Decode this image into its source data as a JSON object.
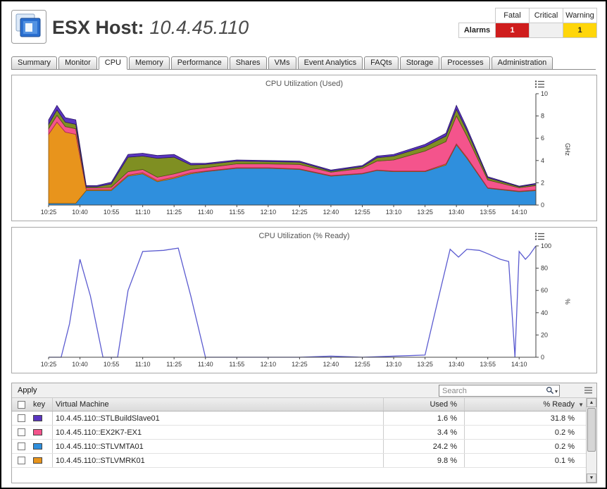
{
  "header": {
    "title_prefix": "ESX Host:",
    "title_value": "10.4.45.110"
  },
  "alarms": {
    "label": "Alarms",
    "columns": [
      "Fatal",
      "Critical",
      "Warning"
    ],
    "fatal_count": "1",
    "critical_count": "",
    "warning_count": "1",
    "fatal_color": "#cf1d1d",
    "critical_color": "#f0f0f0",
    "warning_color": "#ffd60a"
  },
  "tabs": {
    "items": [
      "Summary",
      "Monitor",
      "CPU",
      "Memory",
      "Performance",
      "Shares",
      "VMs",
      "Event Analytics",
      "FAQts",
      "Storage",
      "Processes",
      "Administration"
    ],
    "active": "CPU"
  },
  "chart_data": [
    {
      "type": "stacked-area",
      "title": "CPU Utilization (Used)",
      "ylabel": "GHz",
      "ylim": [
        0,
        10
      ],
      "yticks": [
        0,
        2,
        4,
        6,
        8,
        10
      ],
      "xtick_labels": [
        "10:25",
        "10:40",
        "10:55",
        "11:10",
        "11:25",
        "11:40",
        "11:55",
        "12:10",
        "12:25",
        "12:40",
        "12:55",
        "13:10",
        "13:25",
        "13:40",
        "13:55",
        "14:10"
      ],
      "xtick_step": 15,
      "xmax": 233,
      "x": [
        0,
        4,
        8,
        13,
        18,
        23,
        30,
        38,
        45,
        52,
        60,
        68,
        75,
        90,
        105,
        120,
        135,
        150,
        157,
        165,
        180,
        190,
        195,
        200,
        210,
        225,
        233
      ],
      "series": [
        {
          "name": "blue (STLVMTA01)",
          "color": "#2f8fdd",
          "stroke": "#1a5f9e",
          "values": [
            0.15,
            0.15,
            0.15,
            0.15,
            1.3,
            1.3,
            1.3,
            2.6,
            2.8,
            2.1,
            2.4,
            2.8,
            3.0,
            3.3,
            3.3,
            3.2,
            2.6,
            2.8,
            3.1,
            3.0,
            3.0,
            3.6,
            5.4,
            4.2,
            1.5,
            1.2,
            1.3
          ]
        },
        {
          "name": "orange (STLVMRK01)",
          "color": "#e8941c",
          "stroke": "#8a5408",
          "values": [
            6.2,
            7.3,
            6.4,
            6.2,
            0.1,
            0.1,
            0.1,
            0.1,
            0.1,
            0.1,
            0.1,
            0.1,
            0.05,
            0.05,
            0.05,
            0.05,
            0.05,
            0.05,
            0.05,
            0.05,
            0.05,
            0.1,
            0.1,
            0.1,
            0.05,
            0.05,
            0.05
          ]
        },
        {
          "name": "pink (EX2K7-EX1)",
          "color": "#f4548c",
          "stroke": "#a82355",
          "values": [
            0.5,
            0.6,
            0.5,
            0.5,
            0.15,
            0.15,
            0.2,
            0.3,
            0.3,
            0.3,
            0.3,
            0.3,
            0.3,
            0.35,
            0.35,
            0.4,
            0.3,
            0.45,
            0.8,
            1.0,
            1.8,
            2.0,
            2.5,
            1.9,
            0.7,
            0.3,
            0.4
          ]
        },
        {
          "name": "olive",
          "color": "#7f8f22",
          "stroke": "#4a5510",
          "values": [
            0.4,
            0.5,
            0.4,
            0.4,
            0.1,
            0.1,
            0.3,
            1.3,
            1.2,
            1.7,
            1.5,
            0.4,
            0.3,
            0.25,
            0.2,
            0.2,
            0.1,
            0.15,
            0.3,
            0.35,
            0.4,
            0.5,
            0.6,
            0.5,
            0.2,
            0.1,
            0.1
          ]
        },
        {
          "name": "purple (STLBuildSlave01)",
          "color": "#5a35c0",
          "stroke": "#2a1566",
          "values": [
            0.4,
            0.4,
            0.4,
            0.4,
            0.1,
            0.1,
            0.15,
            0.25,
            0.25,
            0.25,
            0.25,
            0.15,
            0.1,
            0.1,
            0.1,
            0.1,
            0.1,
            0.1,
            0.15,
            0.15,
            0.2,
            0.25,
            0.35,
            0.25,
            0.1,
            0.05,
            0.1
          ]
        }
      ]
    },
    {
      "type": "line",
      "title": "CPU Utilization (% Ready)",
      "ylabel": "%",
      "ylim": [
        0,
        100
      ],
      "yticks": [
        0,
        20,
        40,
        60,
        80,
        100
      ],
      "xtick_labels": [
        "10:25",
        "10:40",
        "10:55",
        "11:10",
        "11:25",
        "11:40",
        "11:55",
        "12:10",
        "12:25",
        "12:40",
        "12:55",
        "13:10",
        "13:25",
        "13:40",
        "13:55",
        "14:10"
      ],
      "xtick_step": 15,
      "xmax": 233,
      "series": [
        {
          "name": "blue-violet line",
          "color": "#5b5bd0",
          "x": [
            0,
            6,
            10,
            15,
            20,
            26,
            33,
            38,
            45,
            55,
            62,
            68,
            75,
            90,
            105,
            120,
            135,
            150,
            165,
            180,
            186,
            192,
            196,
            200,
            206,
            210,
            216,
            220,
            223,
            225,
            228,
            230,
            233
          ],
          "y": [
            0,
            0,
            30,
            88,
            55,
            0,
            0,
            60,
            95,
            96,
            98,
            55,
            0,
            0,
            0,
            0,
            1,
            0,
            1,
            2,
            50,
            97,
            90,
            97,
            96,
            93,
            88,
            86,
            0,
            95,
            88,
            92,
            100
          ]
        }
      ]
    }
  ],
  "table": {
    "apply_label": "Apply",
    "search": {
      "placeholder": "Search"
    },
    "columns": {
      "key": "key",
      "vm": "Virtual Machine",
      "used": "Used %",
      "ready": "% Ready"
    },
    "sort": {
      "column": "% Ready",
      "direction": "desc"
    },
    "rows": [
      {
        "key_color": "#5a35c0",
        "vm": "10.4.45.110::STLBuildSlave01",
        "used": "1.6 %",
        "ready": "31.8 %"
      },
      {
        "key_color": "#f4548c",
        "vm": "10.4.45.110::EX2K7-EX1",
        "used": "3.4 %",
        "ready": "0.2 %"
      },
      {
        "key_color": "#2f8fdd",
        "vm": "10.4.45.110::STLVMTA01",
        "used": "24.2 %",
        "ready": "0.2 %"
      },
      {
        "key_color": "#e8941c",
        "vm": "10.4.45.110::STLVMRK01",
        "used": "9.8 %",
        "ready": "0.1 %"
      }
    ]
  }
}
